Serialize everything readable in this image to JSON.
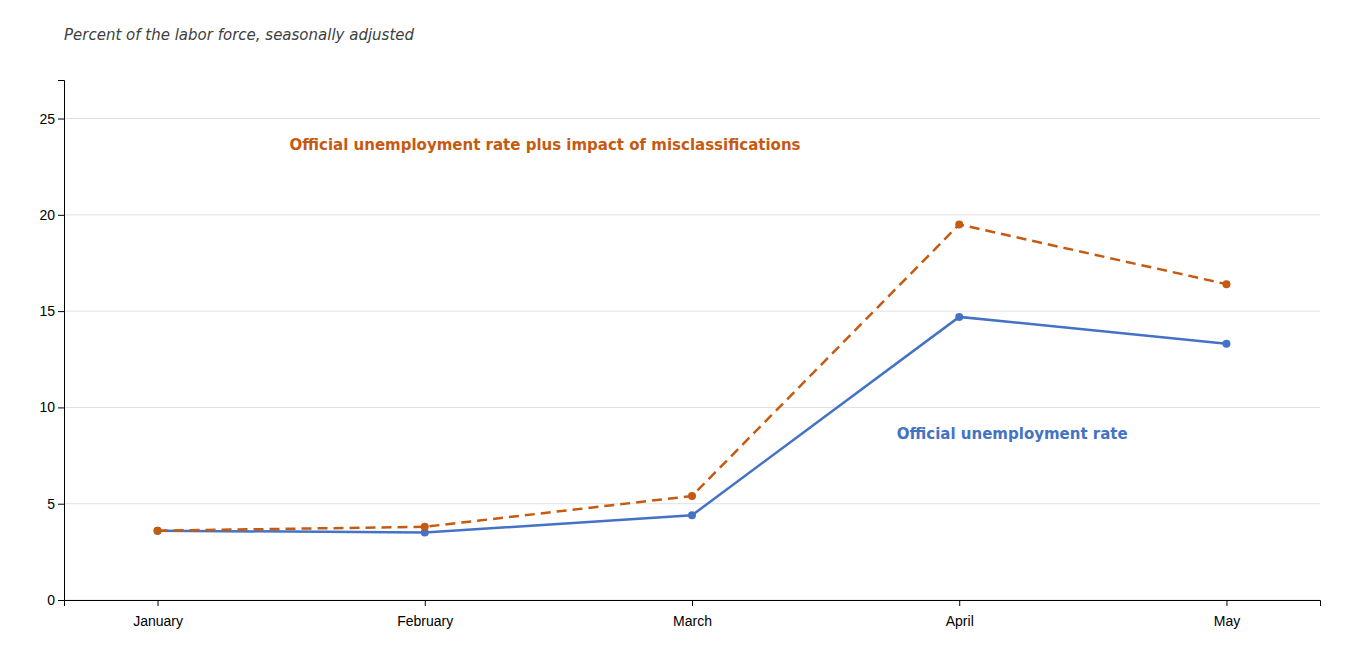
{
  "chart_data": {
    "type": "line",
    "subtitle": "Percent of the labor force, seasonally adjusted",
    "categories": [
      "January",
      "February",
      "March",
      "April",
      "May"
    ],
    "series": [
      {
        "name": "Official unemployment rate",
        "color": "#4472C4",
        "marker": "circle",
        "line_style": "solid",
        "values": [
          3.6,
          3.5,
          4.4,
          14.7,
          13.3
        ]
      },
      {
        "name": "Official unemployment rate plus impact of misclassifications",
        "color": "#C55A11",
        "marker": "circle",
        "line_style": "dashed",
        "values": [
          3.6,
          3.8,
          5.4,
          19.5,
          16.4
        ]
      }
    ],
    "ylim": [
      0,
      27
    ],
    "yticks": [
      0,
      5,
      10,
      15,
      20,
      25
    ],
    "grid": "y"
  }
}
